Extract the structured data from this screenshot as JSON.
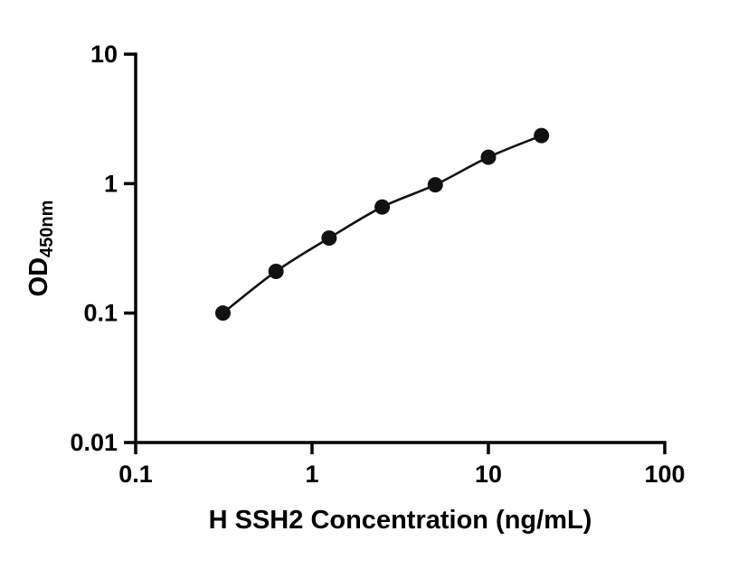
{
  "figure": {
    "background": "#ffffff"
  },
  "chart_data": {
    "type": "scatter",
    "subtype": "standard-curve-with-fit-line",
    "title": "",
    "xlabel": "H SSH2 Concentration (ng/mL)",
    "ylabel_main": "OD",
    "ylabel_sub": "450nm",
    "x_scale": "log",
    "y_scale": "log",
    "xlim": [
      0.1,
      100
    ],
    "ylim": [
      0.01,
      10
    ],
    "x_ticks": [
      {
        "value": 0.1,
        "label": "0.1"
      },
      {
        "value": 1,
        "label": "1"
      },
      {
        "value": 10,
        "label": "10"
      },
      {
        "value": 100,
        "label": "100"
      }
    ],
    "y_ticks": [
      {
        "value": 0.01,
        "label": "0.01"
      },
      {
        "value": 0.1,
        "label": "0.1"
      },
      {
        "value": 1,
        "label": "1"
      },
      {
        "value": 10,
        "label": "10"
      }
    ],
    "series": [
      {
        "name": "standard-curve",
        "x": [
          0.3125,
          0.625,
          1.25,
          2.5,
          5,
          10,
          20
        ],
        "y": [
          0.1,
          0.21,
          0.38,
          0.66,
          0.98,
          1.6,
          2.35
        ]
      }
    ],
    "grid": false,
    "legend": "none",
    "marker_color": "#111111",
    "line_color": "#111111",
    "axis_color": "#000000"
  }
}
